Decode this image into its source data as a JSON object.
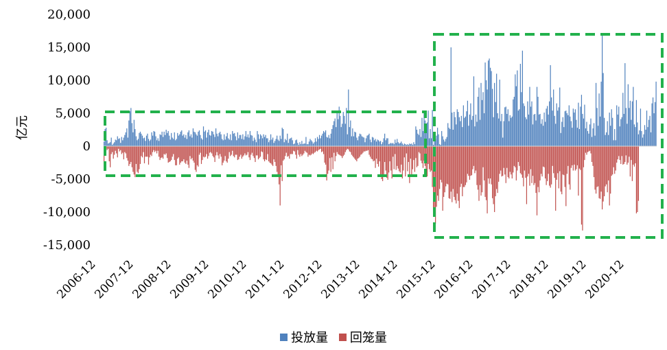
{
  "chart_data": {
    "type": "bar",
    "title": "",
    "xlabel": "",
    "ylabel": "亿元",
    "ylim": [
      -15000,
      20000
    ],
    "y_ticks": [
      20000,
      15000,
      10000,
      5000,
      0,
      -5000,
      -10000,
      -15000
    ],
    "y_tick_labels": [
      "20,000",
      "15,000",
      "10,000",
      "5,000",
      "0",
      "-5,000",
      "-10,000",
      "-15,000"
    ],
    "x_tick_labels": [
      "2006-12",
      "2007-12",
      "2008-12",
      "2009-12",
      "2010-12",
      "2011-12",
      "2012-12",
      "2013-12",
      "2014-12",
      "2015-12",
      "2016-12",
      "2017-12",
      "2018-12",
      "2019-12",
      "2020-12"
    ],
    "x_period": "weekly, 2006-12 to 2021-06",
    "series": [
      {
        "name": "投放量",
        "color": "#4F81BD",
        "values": [
          700,
          2600,
          2800,
          900,
          400,
          500,
          600,
          1300,
          200,
          400,
          600,
          1000,
          900,
          1500,
          1100,
          1200,
          500,
          1400,
          900,
          1300,
          1700,
          2100,
          2700,
          1300,
          3900,
          5300,
          5800,
          3500,
          2100,
          4000,
          2600,
          1500,
          900,
          1100,
          2000,
          2200,
          1900,
          1600,
          1200,
          1300,
          800,
          1600,
          1900,
          1100,
          800,
          1000,
          2100,
          1600,
          2300,
          2200,
          1500,
          900,
          1200,
          800,
          1800,
          1700,
          2200,
          1400,
          2200,
          1700,
          2500,
          2000,
          2300,
          1600,
          1000,
          2000,
          1300,
          1100,
          2100,
          900,
          1100,
          2000,
          1600,
          1800,
          2200,
          2400,
          1600,
          1800,
          1300,
          1700,
          1100,
          2100,
          2400,
          1500,
          1800,
          1300,
          2700,
          2200,
          2100,
          1800,
          1600,
          2200,
          2400,
          1700,
          1200,
          1000,
          3000,
          2200,
          2400,
          1300,
          2100,
          2500,
          1700,
          1600,
          2300,
          2200,
          1800,
          1400,
          2700,
          1900,
          1500,
          2000,
          2200,
          1800,
          1100,
          900,
          1800,
          1000,
          1500,
          2000,
          1200,
          1000,
          1800,
          900,
          2300,
          1900,
          2000,
          1500,
          900,
          2100,
          1200,
          1700,
          1700,
          1100,
          1800,
          1000,
          1500,
          2300,
          1400,
          1800,
          1300,
          2300,
          1700,
          1600,
          800,
          1300,
          1000,
          600,
          2300,
          1800,
          1100,
          1800,
          1600,
          1200,
          1800,
          1400,
          1700,
          1200,
          1200,
          600,
          900,
          1800,
          1000,
          1300,
          500,
          800,
          1100,
          1600,
          1000,
          800,
          1600,
          1100,
          2800,
          2600,
          600,
          1100,
          900,
          1900,
          500,
          1100,
          1200,
          1300,
          900,
          300,
          400,
          900,
          1000,
          500,
          200,
          600,
          300,
          800,
          300,
          400,
          400,
          1400,
          300,
          300,
          700,
          1100,
          900,
          700,
          400,
          600,
          1200,
          700,
          1400,
          1100,
          1700,
          1200,
          1600,
          1900,
          2300,
          2100,
          2400,
          1400,
          1300,
          1700,
          1200,
          1900,
          2600,
          3200,
          3800,
          4200,
          2900,
          5200,
          4100,
          6000,
          4600,
          2900,
          3400,
          5200,
          4600,
          3400,
          5800,
          1800,
          8600,
          2900,
          3900,
          1500,
          2700,
          1500,
          2200,
          2100,
          1300,
          900,
          1500,
          1900,
          1800,
          1500,
          1400,
          1300,
          600,
          1200,
          1600,
          1700,
          1900,
          1000,
          600,
          1400,
          1300,
          900,
          1100,
          700,
          1000,
          900,
          700,
          800,
          300,
          600,
          1200,
          1900,
          900,
          1200,
          1200,
          300,
          400,
          500,
          400,
          500,
          300,
          1000,
          500,
          1100,
          600,
          400,
          500,
          700,
          400,
          200,
          400,
          300,
          200,
          300,
          200,
          400,
          300,
          400,
          200,
          600,
          300,
          3000,
          2500,
          1900,
          1700,
          2600,
          1400,
          4300,
          2300,
          5000,
          3900,
          2400,
          3600,
          5400,
          1200,
          2600,
          1200,
          5500,
          200,
          2000,
          1100,
          1600,
          2800,
          1800,
          300,
          200,
          2300,
          1500,
          1000,
          700,
          1100,
          1400,
          3500,
          2800,
          2600,
          15000,
          5100,
          2500,
          5200,
          4400,
          3300,
          5600,
          5200,
          4400,
          3800,
          4600,
          2900,
          6200,
          4300,
          4500,
          5300,
          6900,
          3100,
          4800,
          6500,
          4000,
          4600,
          10600,
          3000,
          4800,
          3700,
          7500,
          8900,
          4000,
          9600,
          7000,
          8200,
          5000,
          12700,
          10000,
          8600,
          13000,
          13300,
          11900,
          11400,
          8700,
          4400,
          9600,
          6700,
          11000,
          5000,
          4200,
          10100,
          3800,
          4900,
          1300,
          3800,
          5900,
          6000,
          4900,
          5600,
          3800,
          4700,
          4300,
          4500,
          7100,
          7500,
          10900,
          9100,
          11500,
          5400,
          5600,
          12500,
          8200,
          14500,
          6500,
          6100,
          4400,
          4100,
          6800,
          4800,
          9000,
          6000,
          6800,
          3300,
          4800,
          4900,
          3900,
          9000,
          7500,
          4800,
          4900,
          3400,
          4100,
          3100,
          5100,
          3700,
          5700,
          6100,
          4800,
          6800,
          12300,
          7400,
          5400,
          8600,
          4600,
          3400,
          6500,
          5400,
          5900,
          8900,
          2000,
          3700,
          4400,
          2900,
          5300,
          5400,
          5000,
          4700,
          6200,
          4500,
          3800,
          2800,
          5700,
          5100,
          5600,
          4000,
          2800,
          6600,
          2600,
          6000,
          7800,
          4900,
          4200,
          6300,
          2700,
          3700,
          2300,
          1900,
          3300,
          4200,
          1400,
          2700,
          3500,
          1600,
          9600,
          5800,
          3100,
          8000,
          4500,
          9800,
          16900,
          11100,
          4300,
          1700,
          2100,
          3800,
          1700,
          5100,
          3100,
          5600,
          4300,
          900,
          2600,
          900,
          6200,
          4800,
          6000,
          3000,
          4100,
          4400,
          8100,
          4900,
          12600,
          5800,
          3400,
          9400,
          5800,
          6900,
          4000,
          6800,
          9000,
          3300,
          2900,
          7000,
          3600,
          1800,
          2400,
          5700,
          2300,
          1300,
          1800,
          3200,
          2500,
          5400,
          2900,
          4000,
          4600,
          2100,
          6500,
          7400,
          5000,
          6700,
          9800
        ]
      },
      {
        "name": "回笼量",
        "color": "#C0504D",
        "values": [
          -3300,
          -1000,
          -400,
          -600,
          -400,
          -2300,
          -3200,
          -1200,
          -900,
          -1900,
          -1300,
          -700,
          -1100,
          -1700,
          -400,
          -800,
          -600,
          -1200,
          -1000,
          -2000,
          -900,
          -1100,
          -1800,
          -2200,
          -3000,
          -2700,
          -2400,
          -3200,
          -3900,
          -4300,
          -4700,
          -2700,
          -3900,
          -4100,
          -3500,
          -2700,
          -1500,
          -1700,
          -900,
          -2600,
          -1600,
          -1600,
          -1600,
          -2800,
          -1700,
          -1300,
          -1500,
          -900,
          -600,
          -900,
          -700,
          -1100,
          -700,
          -1600,
          -2100,
          -1800,
          -1700,
          -1900,
          -1200,
          -1300,
          -1100,
          -1800,
          -2500,
          -2400,
          -2300,
          -2100,
          -1600,
          -1200,
          -2100,
          -2900,
          -2900,
          -1900,
          -1700,
          -2800,
          -2500,
          -2300,
          -2300,
          -2000,
          -2500,
          -2700,
          -2200,
          -2800,
          -3300,
          -1500,
          -2000,
          -1800,
          -2200,
          -2500,
          -3600,
          -3900,
          -2900,
          -3100,
          -1300,
          -1000,
          -2700,
          -2100,
          -1600,
          -1700,
          -1600,
          -1200,
          -1900,
          -1500,
          -1000,
          -900,
          -1100,
          -1500,
          -1700,
          -2400,
          -1400,
          -900,
          -1400,
          -1900,
          -1200,
          -1600,
          -2900,
          -2500,
          -2200,
          -1500,
          -2300,
          -2500,
          -1900,
          -900,
          -1500,
          -1300,
          -700,
          -1500,
          -1700,
          -1300,
          -1300,
          -2100,
          -2000,
          -1600,
          -1300,
          -1900,
          -1600,
          -1400,
          -1100,
          -1400,
          -1300,
          -900,
          -1700,
          -2100,
          -1300,
          -1000,
          -1500,
          -1800,
          -2400,
          -1400,
          -1400,
          -2000,
          -1800,
          -1600,
          -800,
          -900,
          -2000,
          -2300,
          -2000,
          -2100,
          -1200,
          -2300,
          -2500,
          -2600,
          -2800,
          -3000,
          -2000,
          -2400,
          -3000,
          -3900,
          -4600,
          -5800,
          -9000,
          -2900,
          -5300,
          -2200,
          -2000,
          -1500,
          -1000,
          -1600,
          -1500,
          -1900,
          -1200,
          -1200,
          -1200,
          -700,
          -800,
          -1300,
          -1900,
          -600,
          -1300,
          -1600,
          -1200,
          -1500,
          -1300,
          -1100,
          -700,
          -900,
          -1000,
          -1600,
          -1300,
          -1400,
          -1300,
          -1100,
          -1200,
          -1000,
          -900,
          -700,
          -800,
          -600,
          -500,
          -400,
          -900,
          -800,
          -1200,
          -2500,
          -2800,
          -5200,
          -4200,
          -3700,
          -1800,
          -3900,
          -1700,
          -3500,
          -1000,
          -2300,
          -1500,
          -900,
          -1200,
          -1300,
          -1400,
          -1500,
          -1800,
          -1500,
          -1300,
          -900,
          -600,
          -400,
          -500,
          -800,
          -900,
          -1300,
          -1500,
          -1700,
          -1900,
          -2100,
          -2300,
          -1900,
          -1800,
          -1600,
          -1300,
          -1200,
          -1000,
          -800,
          -800,
          -700,
          -700,
          -600,
          -1300,
          -1600,
          -1900,
          -2000,
          -2300,
          -2200,
          -3300,
          -1900,
          -2700,
          -3100,
          -2300,
          -4500,
          -5000,
          -5300,
          -4300,
          -2400,
          -3700,
          -4800,
          -5100,
          -4000,
          -2300,
          -3700,
          -4900,
          -1600,
          -3500,
          -1200,
          -3600,
          -3000,
          -3400,
          -3800,
          -4000,
          -2800,
          -4900,
          -3700,
          -1700,
          -4600,
          -1100,
          -3800,
          -2400,
          -5600,
          -1900,
          -4400,
          -3500,
          -2100,
          -3900,
          -1800,
          -3200,
          -3000,
          -900,
          -1100,
          -2200,
          -2600,
          -3300,
          -2200,
          -3000,
          -4400,
          -4600,
          -2700,
          -3500,
          -3900,
          -3700,
          -6200,
          -9900,
          -10400,
          -11800,
          -9200,
          -7500,
          -8300,
          -6500,
          -5100,
          -5500,
          -9800,
          -7700,
          -7000,
          -6100,
          -5700,
          -5800,
          -7900,
          -8000,
          -6900,
          -8500,
          -6500,
          -7700,
          -8200,
          -8700,
          -7200,
          -8300,
          -9400,
          -6200,
          -5700,
          -7600,
          -6200,
          -6200,
          -5900,
          -5500,
          -4200,
          -4500,
          -5100,
          -4500,
          -4400,
          -3500,
          -3000,
          -4100,
          -3700,
          -5900,
          -6600,
          -8300,
          -5900,
          -7500,
          -7000,
          -3200,
          -5200,
          -7700,
          -8200,
          -10200,
          -4900,
          -5700,
          -4900,
          -5800,
          -7900,
          -8800,
          -10000,
          -7600,
          -6500,
          -7100,
          -5400,
          -4200,
          -3700,
          -4600,
          -4500,
          -3300,
          -4300,
          -5600,
          -3300,
          -4700,
          -4900,
          -3900,
          -4300,
          -4900,
          -4000,
          -3000,
          -3200,
          -5200,
          -3700,
          -2400,
          -3000,
          -4100,
          -4300,
          -4800,
          -6100,
          -3700,
          -4800,
          -8800,
          -4600,
          -4200,
          -6000,
          -3500,
          -5600,
          -4500,
          -5900,
          -5600,
          -7100,
          -10500,
          -6200,
          -7000,
          -5200,
          -4200,
          -4600,
          -3100,
          -3200,
          -4900,
          -5900,
          -5300,
          -4200,
          -6000,
          -6300,
          -5800,
          -3000,
          -4100,
          -4800,
          -9800,
          -5100,
          -4100,
          -6400,
          -3800,
          -6900,
          -7300,
          -4300,
          -4400,
          -6200,
          -9100,
          -4200,
          -3000,
          -5800,
          -6600,
          -3300,
          -2900,
          -3700,
          -2800,
          -3700,
          -3500,
          -2900,
          -7500,
          -3400,
          -3600,
          -11900,
          -12800,
          -3200,
          -2100,
          -1000,
          -1300,
          -900,
          -800,
          -700,
          -1100,
          -2400,
          -3000,
          -4700,
          -6600,
          -7200,
          -6200,
          -6100,
          -7900,
          -8000,
          -6900,
          -9600,
          -8400,
          -7600,
          -6100,
          -5800,
          -7000,
          -5200,
          -9000,
          -7200,
          -4500,
          -4300,
          -3200,
          -4200,
          -3700,
          -2500,
          -2000,
          -1500,
          -2100,
          -2700,
          -1500,
          -2800,
          -2700,
          -2400,
          -1400,
          -2800,
          -2500,
          -1600,
          -4600,
          -2100,
          -5300,
          -2800,
          -3100,
          -2600,
          -10200,
          -10000,
          -8300
        ]
      }
    ],
    "legend": {
      "position": "bottom",
      "items": [
        "投放量",
        "回笼量"
      ]
    },
    "annotations": [
      {
        "type": "dashed-box",
        "color": "#22B14C",
        "period": "2006-12 to 2015-06",
        "y_range": [
          -4500,
          5500
        ]
      },
      {
        "type": "dashed-box",
        "color": "#22B14C",
        "period": "2015-12 to 2021-06",
        "y_range": [
          -13500,
          17000
        ]
      }
    ]
  }
}
